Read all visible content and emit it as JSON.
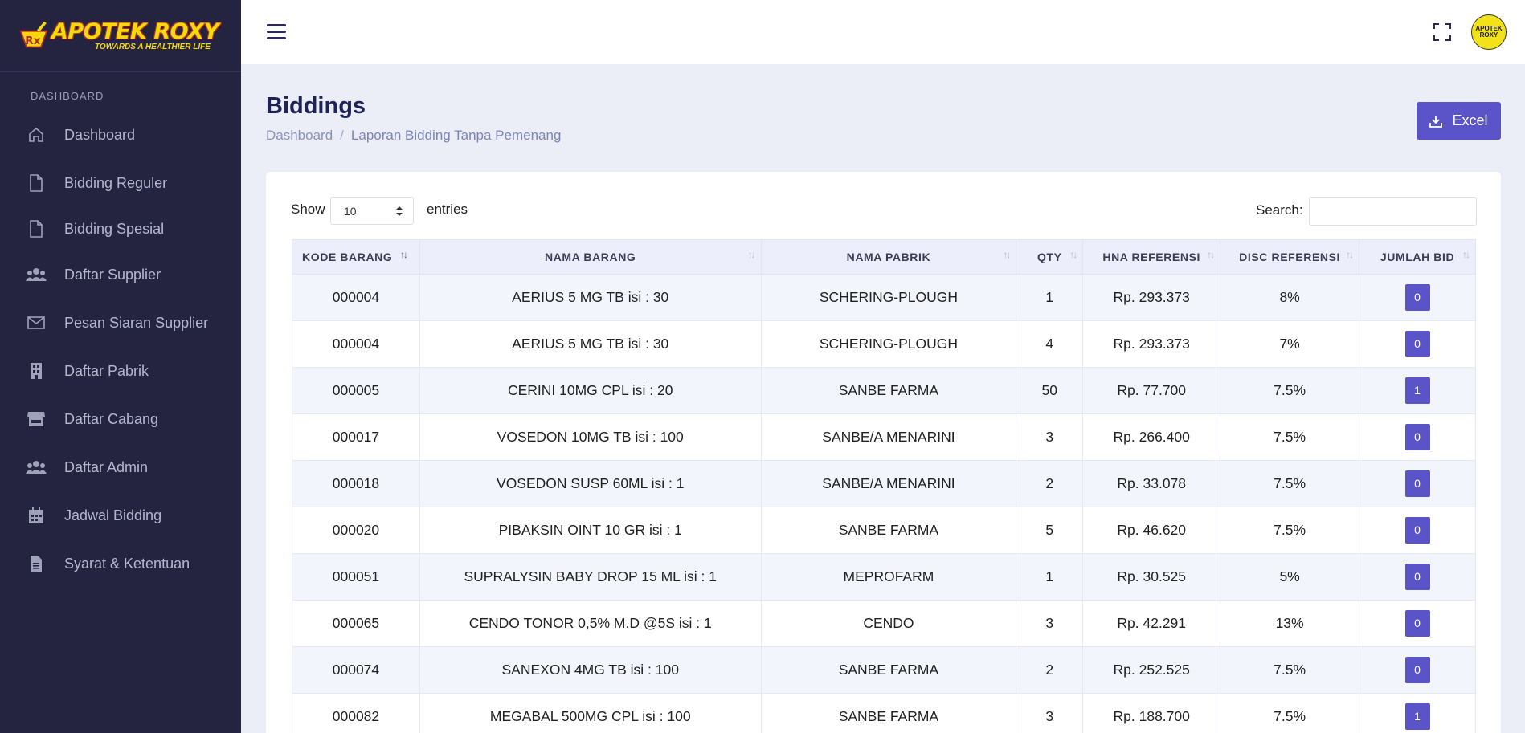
{
  "brand": {
    "title": "APOTEK ROXY",
    "tagline": "TOWARDS A HEALTHIER LIFE",
    "avatar_line1": "APOTEK",
    "avatar_line2": "ROXY"
  },
  "sidebar": {
    "heading": "DASHBOARD",
    "items": [
      {
        "label": "Dashboard",
        "icon": "home-icon"
      },
      {
        "label": "Bidding Reguler",
        "icon": "file-icon"
      },
      {
        "label": "Bidding Spesial",
        "icon": "file-icon"
      },
      {
        "label": "Daftar Supplier",
        "icon": "users-icon"
      },
      {
        "label": "Pesan Siaran Supplier",
        "icon": "envelope-icon"
      },
      {
        "label": "Daftar Pabrik",
        "icon": "building-icon"
      },
      {
        "label": "Daftar Cabang",
        "icon": "store-icon"
      },
      {
        "label": "Daftar Admin",
        "icon": "users-icon"
      },
      {
        "label": "Jadwal Bidding",
        "icon": "calendar-icon"
      },
      {
        "label": "Syarat & Ketentuan",
        "icon": "document-icon"
      }
    ]
  },
  "page": {
    "title": "Biddings",
    "breadcrumb": {
      "home": "Dashboard",
      "separator": "/",
      "current": "Laporan Bidding Tanpa Pemenang"
    },
    "excel_label": "Excel"
  },
  "table_controls": {
    "show_label": "Show",
    "entries_value": "10",
    "entries_label": "entries",
    "search_label": "Search:",
    "search_value": ""
  },
  "table": {
    "columns": [
      "KODE BARANG",
      "NAMA BARANG",
      "NAMA PABRIK",
      "QTY",
      "HNA REFERENSI",
      "DISC REFERENSI",
      "JUMLAH BID"
    ],
    "rows": [
      {
        "kode": "000004",
        "nama": "AERIUS 5 MG TB isi : 30",
        "pabrik": "SCHERING-PLOUGH",
        "qty": "1",
        "hna": "Rp. 293.373",
        "disc": "8%",
        "bid": "0"
      },
      {
        "kode": "000004",
        "nama": "AERIUS 5 MG TB isi : 30",
        "pabrik": "SCHERING-PLOUGH",
        "qty": "4",
        "hna": "Rp. 293.373",
        "disc": "7%",
        "bid": "0"
      },
      {
        "kode": "000005",
        "nama": "CERINI 10MG CPL isi : 20",
        "pabrik": "SANBE FARMA",
        "qty": "50",
        "hna": "Rp. 77.700",
        "disc": "7.5%",
        "bid": "1"
      },
      {
        "kode": "000017",
        "nama": "VOSEDON 10MG TB isi : 100",
        "pabrik": "SANBE/A MENARINI",
        "qty": "3",
        "hna": "Rp. 266.400",
        "disc": "7.5%",
        "bid": "0"
      },
      {
        "kode": "000018",
        "nama": "VOSEDON SUSP 60ML isi : 1",
        "pabrik": "SANBE/A MENARINI",
        "qty": "2",
        "hna": "Rp. 33.078",
        "disc": "7.5%",
        "bid": "0"
      },
      {
        "kode": "000020",
        "nama": "PIBAKSIN OINT 10 GR isi : 1",
        "pabrik": "SANBE FARMA",
        "qty": "5",
        "hna": "Rp. 46.620",
        "disc": "7.5%",
        "bid": "0"
      },
      {
        "kode": "000051",
        "nama": "SUPRALYSIN BABY DROP 15 ML isi : 1",
        "pabrik": "MEPROFARM",
        "qty": "1",
        "hna": "Rp. 30.525",
        "disc": "5%",
        "bid": "0"
      },
      {
        "kode": "000065",
        "nama": "CENDO TONOR 0,5% M.D @5S isi : 1",
        "pabrik": "CENDO",
        "qty": "3",
        "hna": "Rp. 42.291",
        "disc": "13%",
        "bid": "0"
      },
      {
        "kode": "000074",
        "nama": "SANEXON 4MG TB isi : 100",
        "pabrik": "SANBE FARMA",
        "qty": "2",
        "hna": "Rp. 252.525",
        "disc": "7.5%",
        "bid": "0"
      },
      {
        "kode": "000082",
        "nama": "MEGABAL 500MG CPL isi : 100",
        "pabrik": "SANBE FARMA",
        "qty": "3",
        "hna": "Rp. 188.700",
        "disc": "7.5%",
        "bid": "1"
      }
    ]
  },
  "colors": {
    "sidebar_bg": "#242440",
    "accent": "#5b54c9",
    "title": "#1d2356",
    "content_bg": "#eceef7"
  }
}
